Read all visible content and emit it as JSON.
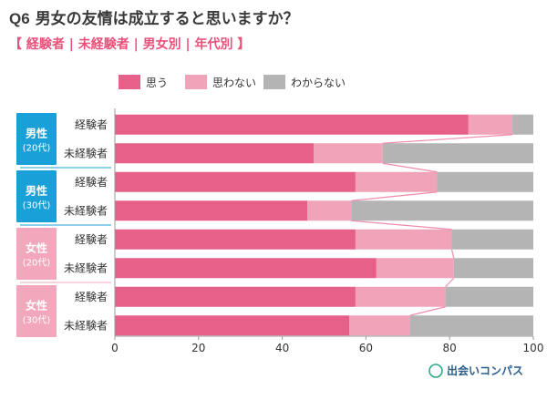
{
  "header": {
    "q_number": "Q6",
    "title": "男女の友情は成立すると思いますか？",
    "subtitle": "【 経験者 | 未経験者 | 男女別 | 年代別 】"
  },
  "brand": {
    "name": "出会いコンパス"
  },
  "colors": {
    "series": [
      "#e6608a",
      "#f0a3b9",
      "#b4b4b4"
    ],
    "connector": "#f08cab",
    "male_group": "#1aa0d8",
    "female_group": "#f2a7bc",
    "title": "#3a3a3a",
    "subtitle": "#e8517a"
  },
  "chart_data": {
    "type": "bar",
    "orientation": "horizontal",
    "stacked": true,
    "xlim": [
      0,
      100
    ],
    "xticks": [
      0,
      20,
      40,
      60,
      80,
      100
    ],
    "legend_position": "top",
    "series": [
      {
        "name": "思う"
      },
      {
        "name": "思わない"
      },
      {
        "name": "わからない"
      }
    ],
    "groups": [
      {
        "label_main": "男性",
        "label_sub": "(20代)",
        "color_key": "male_group",
        "rows": [
          {
            "label": "経験者",
            "values": [
              84.5,
              10.5,
              5.0
            ]
          },
          {
            "label": "未経験者",
            "values": [
              47.5,
              16.5,
              36.0
            ]
          }
        ]
      },
      {
        "label_main": "男性",
        "label_sub": "(30代)",
        "color_key": "male_group",
        "rows": [
          {
            "label": "経験者",
            "values": [
              57.5,
              19.5,
              23.0
            ]
          },
          {
            "label": "未経験者",
            "values": [
              46.0,
              10.5,
              43.5
            ]
          }
        ]
      },
      {
        "label_main": "女性",
        "label_sub": "(20代)",
        "color_key": "female_group",
        "rows": [
          {
            "label": "経験者",
            "values": [
              57.5,
              23.0,
              19.5
            ]
          },
          {
            "label": "未経験者",
            "values": [
              62.5,
              18.5,
              19.0
            ]
          }
        ]
      },
      {
        "label_main": "女性",
        "label_sub": "(30代)",
        "color_key": "female_group",
        "rows": [
          {
            "label": "経験者",
            "values": [
              57.5,
              21.5,
              21.0
            ]
          },
          {
            "label": "未経験者",
            "values": [
              56.0,
              14.5,
              29.5
            ]
          }
        ]
      }
    ]
  }
}
